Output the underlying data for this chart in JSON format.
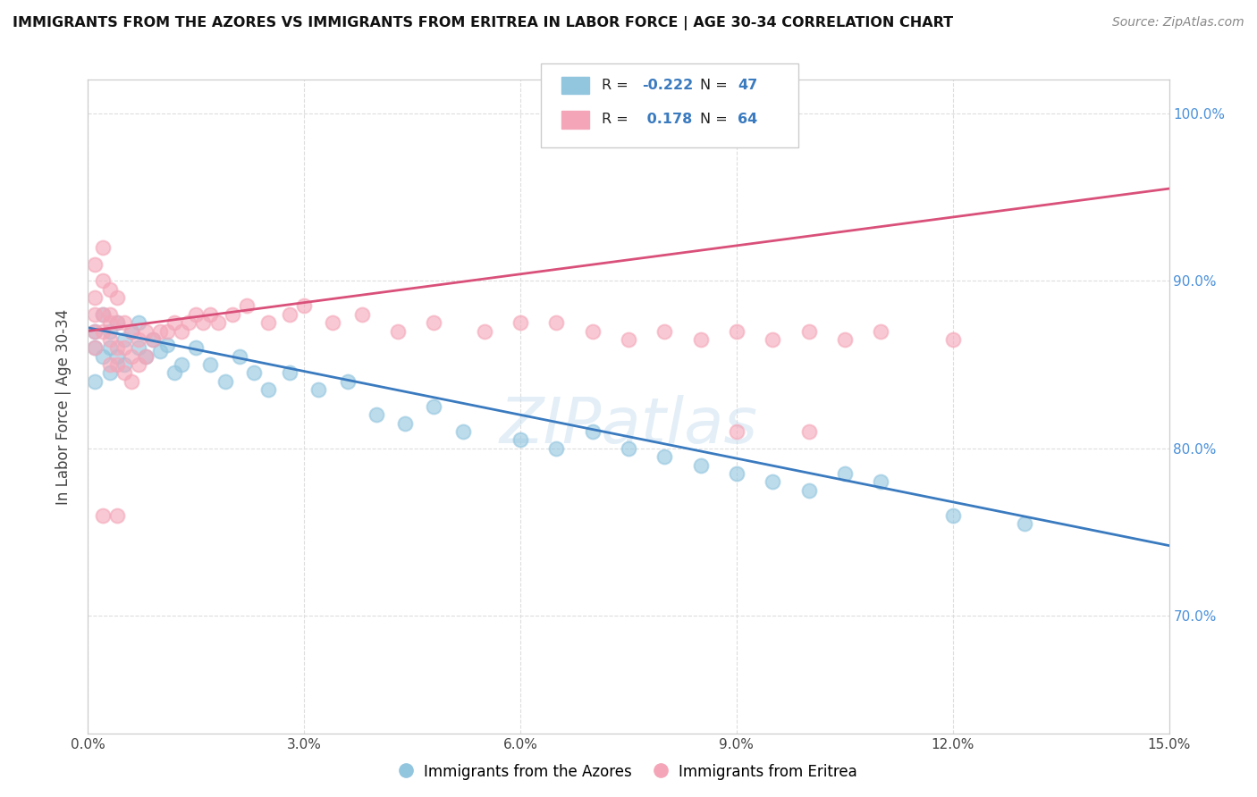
{
  "title": "IMMIGRANTS FROM THE AZORES VS IMMIGRANTS FROM ERITREA IN LABOR FORCE | AGE 30-34 CORRELATION CHART",
  "source": "Source: ZipAtlas.com",
  "ylabel": "In Labor Force | Age 30-34",
  "xlim": [
    0.0,
    0.15
  ],
  "ylim": [
    0.63,
    1.02
  ],
  "xticks": [
    0.0,
    0.03,
    0.06,
    0.09,
    0.12,
    0.15
  ],
  "xticklabels": [
    "0.0%",
    "3.0%",
    "6.0%",
    "9.0%",
    "12.0%",
    "15.0%"
  ],
  "yticks": [
    0.7,
    0.8,
    0.9,
    1.0
  ],
  "yticklabels": [
    "70.0%",
    "80.0%",
    "90.0%",
    "100.0%"
  ],
  "legend_r_azores": "-0.222",
  "legend_n_azores": "47",
  "legend_r_eritrea": "0.178",
  "legend_n_eritrea": "64",
  "blue_color": "#92c5de",
  "pink_color": "#f4a6b8",
  "blue_line_color": "#3a7abf",
  "pink_line_color": "#d9507a",
  "watermark": "ZIPatlas",
  "azores_x": [
    0.001,
    0.001,
    0.001,
    0.002,
    0.002,
    0.003,
    0.003,
    0.003,
    0.004,
    0.004,
    0.005,
    0.005,
    0.006,
    0.007,
    0.007,
    0.008,
    0.009,
    0.01,
    0.011,
    0.012,
    0.013,
    0.015,
    0.017,
    0.019,
    0.021,
    0.023,
    0.025,
    0.028,
    0.032,
    0.036,
    0.04,
    0.044,
    0.048,
    0.052,
    0.06,
    0.065,
    0.07,
    0.075,
    0.08,
    0.085,
    0.09,
    0.095,
    0.1,
    0.105,
    0.11,
    0.12,
    0.13
  ],
  "azores_y": [
    0.87,
    0.86,
    0.84,
    0.88,
    0.855,
    0.87,
    0.86,
    0.845,
    0.875,
    0.855,
    0.865,
    0.85,
    0.87,
    0.86,
    0.875,
    0.855,
    0.865,
    0.858,
    0.862,
    0.845,
    0.85,
    0.86,
    0.85,
    0.84,
    0.855,
    0.845,
    0.835,
    0.845,
    0.835,
    0.84,
    0.82,
    0.815,
    0.825,
    0.81,
    0.805,
    0.8,
    0.81,
    0.8,
    0.795,
    0.79,
    0.785,
    0.78,
    0.775,
    0.785,
    0.78,
    0.76,
    0.755
  ],
  "eritrea_x": [
    0.001,
    0.001,
    0.001,
    0.001,
    0.001,
    0.002,
    0.002,
    0.002,
    0.002,
    0.003,
    0.003,
    0.003,
    0.003,
    0.003,
    0.004,
    0.004,
    0.004,
    0.004,
    0.005,
    0.005,
    0.005,
    0.006,
    0.006,
    0.006,
    0.007,
    0.007,
    0.008,
    0.008,
    0.009,
    0.01,
    0.011,
    0.012,
    0.013,
    0.014,
    0.015,
    0.016,
    0.017,
    0.018,
    0.02,
    0.022,
    0.025,
    0.028,
    0.03,
    0.034,
    0.038,
    0.043,
    0.048,
    0.055,
    0.06,
    0.065,
    0.07,
    0.075,
    0.08,
    0.085,
    0.09,
    0.095,
    0.1,
    0.105,
    0.11,
    0.12,
    0.09,
    0.1,
    0.004,
    0.002
  ],
  "eritrea_y": [
    0.87,
    0.86,
    0.91,
    0.89,
    0.88,
    0.92,
    0.9,
    0.88,
    0.87,
    0.88,
    0.895,
    0.875,
    0.865,
    0.85,
    0.875,
    0.89,
    0.86,
    0.85,
    0.875,
    0.86,
    0.845,
    0.87,
    0.855,
    0.84,
    0.865,
    0.85,
    0.87,
    0.855,
    0.865,
    0.87,
    0.87,
    0.875,
    0.87,
    0.875,
    0.88,
    0.875,
    0.88,
    0.875,
    0.88,
    0.885,
    0.875,
    0.88,
    0.885,
    0.875,
    0.88,
    0.87,
    0.875,
    0.87,
    0.875,
    0.875,
    0.87,
    0.865,
    0.87,
    0.865,
    0.87,
    0.865,
    0.87,
    0.865,
    0.87,
    0.865,
    0.81,
    0.81,
    0.76,
    0.76
  ],
  "blue_trendline": [
    0.872,
    0.742
  ],
  "pink_trendline": [
    0.87,
    0.955
  ]
}
